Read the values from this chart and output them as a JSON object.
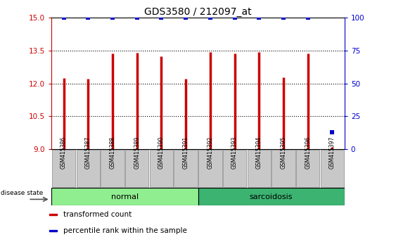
{
  "title": "GDS3580 / 212097_at",
  "samples": [
    "GSM415386",
    "GSM415387",
    "GSM415388",
    "GSM415389",
    "GSM415390",
    "GSM415391",
    "GSM415392",
    "GSM415393",
    "GSM415394",
    "GSM415395",
    "GSM415396",
    "GSM415397"
  ],
  "transformed_counts": [
    12.25,
    12.22,
    13.35,
    13.38,
    13.25,
    12.22,
    13.42,
    13.35,
    13.42,
    12.28,
    13.35,
    9.1
  ],
  "percentile_ranks": [
    100,
    100,
    100,
    100,
    100,
    100,
    100,
    100,
    100,
    100,
    100,
    13
  ],
  "groups": [
    {
      "label": "normal",
      "start": 0,
      "end": 6,
      "color": "#90EE90"
    },
    {
      "label": "sarcoidosis",
      "start": 6,
      "end": 12,
      "color": "#3CB371"
    }
  ],
  "ylim_left": [
    9,
    15
  ],
  "ylim_right": [
    0,
    100
  ],
  "yticks_left": [
    9,
    10.5,
    12,
    13.5,
    15
  ],
  "yticks_right": [
    0,
    25,
    50,
    75,
    100
  ],
  "bar_color": "#CC0000",
  "dot_color": "#0000CC",
  "tick_area_color": "#C8C8C8",
  "legend_items": [
    {
      "color": "#CC0000",
      "label": "transformed count"
    },
    {
      "color": "#0000CC",
      "label": "percentile rank within the sample"
    }
  ],
  "normal_light": "#C8F0C8",
  "sarc_green": "#3CB371"
}
